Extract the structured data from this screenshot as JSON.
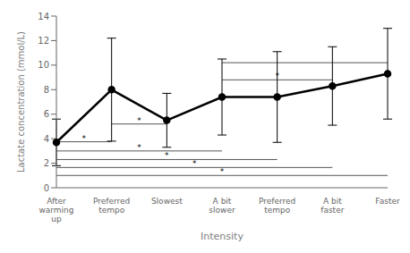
{
  "chart_data": {
    "type": "line",
    "categories": [
      "After\nwarming\nup",
      "Preferred\ntempo",
      "Slowest",
      "A bit\nslower",
      "Preferred\ntempo",
      "A bit\nfaster",
      "Faster"
    ],
    "values": [
      3.7,
      8.0,
      5.5,
      7.4,
      7.4,
      8.3,
      9.3
    ],
    "errors": [
      1.9,
      4.2,
      2.2,
      3.1,
      3.7,
      3.2,
      3.7
    ],
    "xlabel": "Intensity",
    "ylabel": "Lactate concentration (mmol/L)",
    "ylim": [
      0,
      14
    ],
    "yticks": [
      0,
      2,
      4,
      6,
      8,
      10,
      12,
      14
    ],
    "color": "black",
    "marker": "o",
    "grid": false,
    "annotations": [
      {
        "x1": 0,
        "x2": 1,
        "y": 3.75,
        "label": "*",
        "color": "#555555"
      },
      {
        "x1": 1,
        "x2": 2,
        "y": 5.2,
        "label": "*",
        "color": "#555555"
      },
      {
        "x1": 0,
        "x2": 3,
        "y": 3.0,
        "label": "*",
        "color": "#555555"
      },
      {
        "x1": 0,
        "x2": 4,
        "y": 2.3,
        "label": "*",
        "color": "#555555"
      },
      {
        "x1": 0,
        "x2": 5,
        "y": 1.65,
        "label": "*",
        "color": "#555555"
      },
      {
        "x1": 0,
        "x2": 6,
        "y": 1.0,
        "label": "*",
        "color": "#555555"
      },
      {
        "x1": 3,
        "x2": 6,
        "y": 10.2,
        "color": "#555555"
      },
      {
        "x1": 3,
        "x2": 5,
        "y": 8.8,
        "label": "*",
        "color": "#555555"
      }
    ]
  }
}
